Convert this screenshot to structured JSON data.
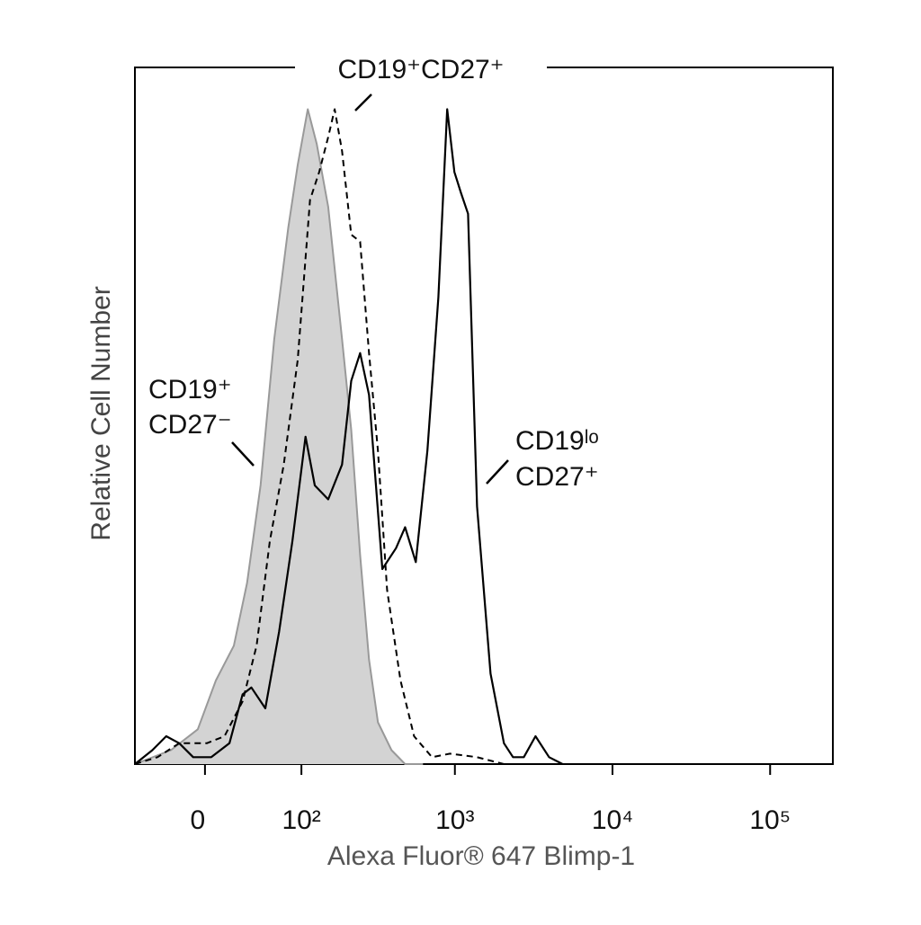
{
  "chart_data": {
    "type": "histogram-overlay",
    "xlabel": "Alexa Fluor® 647 Blimp-1",
    "ylabel": "Relative Cell Number",
    "xscale": "asinh",
    "xlim": [
      -63,
      250000
    ],
    "ylim": [
      0,
      100
    ],
    "xticks": [
      0,
      {
        "value": 100,
        "label": "10²"
      },
      {
        "value": 1000,
        "label": "10³"
      },
      {
        "value": 10000,
        "label": "10⁴"
      },
      {
        "value": 100000,
        "label": "10⁵"
      }
    ],
    "annotations": [
      [
        "CD19⁺CD27⁺"
      ],
      [
        "CD19⁺",
        "CD27⁻"
      ],
      [
        "CD19ˡᵒ",
        "CD27⁺"
      ]
    ],
    "series": [
      {
        "style": "filled",
        "color": "#d3d3d3",
        "x": [
          -63,
          -27,
          -5.5,
          8.3,
          22.6,
          34,
          47,
          62,
          80,
          94,
          111,
          128,
          153,
          189,
          217,
          248,
          283,
          323,
          395,
          482,
          627
        ],
        "values": [
          0,
          2,
          5,
          12,
          17,
          26,
          40,
          61,
          77,
          86,
          94,
          89,
          80,
          61,
          48,
          30,
          15,
          6,
          2,
          0,
          0
        ]
      },
      {
        "style": "dashed",
        "color": "#000000",
        "x": [
          -63,
          -39,
          -20,
          1.4,
          15,
          30,
          43,
          57,
          74,
          94,
          115,
          133,
          153,
          169,
          189,
          217,
          248,
          283,
          323,
          370,
          451,
          550,
          715,
          931,
          1383,
          2049,
          3474
        ],
        "values": [
          0,
          1,
          3,
          3,
          4,
          9,
          17,
          32,
          43,
          58,
          81,
          85,
          90,
          94,
          88,
          76,
          75,
          59,
          45,
          25,
          12,
          4,
          1,
          1.5,
          1,
          0,
          0
        ]
      },
      {
        "style": "solid",
        "color": "#000000",
        "x": [
          -63,
          -44,
          -31,
          -20,
          -9,
          4.8,
          19,
          30,
          38,
          52,
          68,
          86,
          107,
          124,
          153,
          189,
          217,
          248,
          283,
          345,
          422,
          482,
          564,
          669,
          785,
          894,
          993,
          1092,
          1212,
          1383,
          1685,
          2049,
          2340,
          2740,
          3250,
          3962,
          4826
        ],
        "values": [
          0,
          2,
          4,
          3,
          1,
          1,
          3,
          10,
          11,
          8,
          19,
          32,
          47,
          40,
          38,
          43,
          55,
          59,
          53,
          28,
          31,
          34,
          29,
          45,
          67,
          94,
          85,
          82,
          79,
          37,
          13,
          3,
          1,
          1,
          4,
          1,
          0
        ]
      }
    ]
  }
}
